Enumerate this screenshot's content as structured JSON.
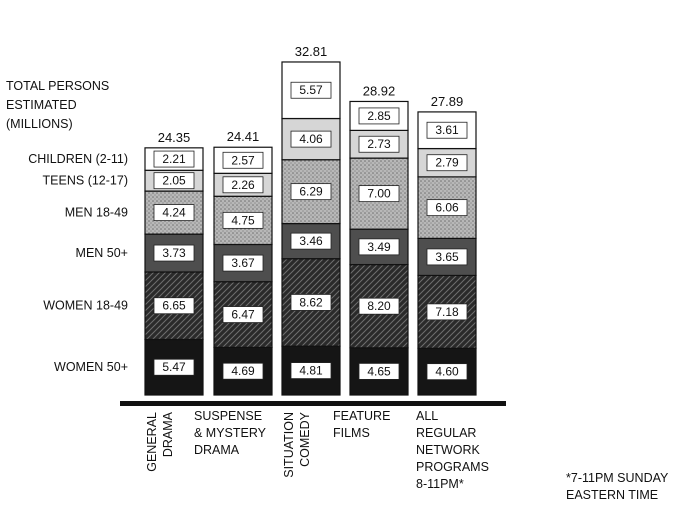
{
  "chart_data": {
    "type": "bar",
    "stacked": true,
    "ylabel": "TOTAL PERSONS ESTIMATED (MILLIONS)",
    "categories": [
      "GENERAL DRAMA",
      "SUSPENSE & MYSTERY DRAMA",
      "SITUATION COMEDY",
      "FEATURE FILMS",
      "ALL REGULAR NETWORK PROGRAMS 8-11PM*"
    ],
    "totals": [
      "24.35",
      "24.41",
      "32.81",
      "28.92",
      "27.89"
    ],
    "series": [
      {
        "name": "WOMEN 50+",
        "values": [
          5.47,
          4.69,
          4.81,
          4.65,
          4.6
        ],
        "labels": [
          "5.47",
          "4.69",
          "4.81",
          "4.65",
          "4.60"
        ],
        "color": "#151515"
      },
      {
        "name": "WOMEN 18-49",
        "values": [
          6.65,
          6.47,
          8.62,
          8.2,
          7.18
        ],
        "labels": [
          "6.65",
          "6.47",
          "8.62",
          "8.20",
          "7.18"
        ],
        "color": "#8c8c8c"
      },
      {
        "name": "MEN 50+",
        "values": [
          3.73,
          3.67,
          3.46,
          3.49,
          3.65
        ],
        "labels": [
          "3.73",
          "3.67",
          "3.46",
          "3.49",
          "3.65"
        ],
        "color": "#5a5a5a"
      },
      {
        "name": "MEN 18-49",
        "values": [
          4.24,
          4.75,
          6.29,
          7.0,
          6.06
        ],
        "labels": [
          "4.24",
          "4.75",
          "6.29",
          "7.00",
          "6.06"
        ],
        "color": "#a0a0a0"
      },
      {
        "name": "TEENS (12-17)",
        "values": [
          2.05,
          2.26,
          4.06,
          2.73,
          2.79
        ],
        "labels": [
          "2.05",
          "2.26",
          "4.06",
          "2.73",
          "2.79"
        ],
        "color": "#d0d0d0"
      },
      {
        "name": "CHILDREN (2-11)",
        "values": [
          2.21,
          2.57,
          5.57,
          2.85,
          3.61
        ],
        "labels": [
          "2.21",
          "2.57",
          "5.57",
          "2.85",
          "3.61"
        ],
        "color": "#ffffff"
      }
    ],
    "legend_placement": "left",
    "footnote": "*7-11PM SUNDAY EASTERN TIME",
    "grid": false
  }
}
